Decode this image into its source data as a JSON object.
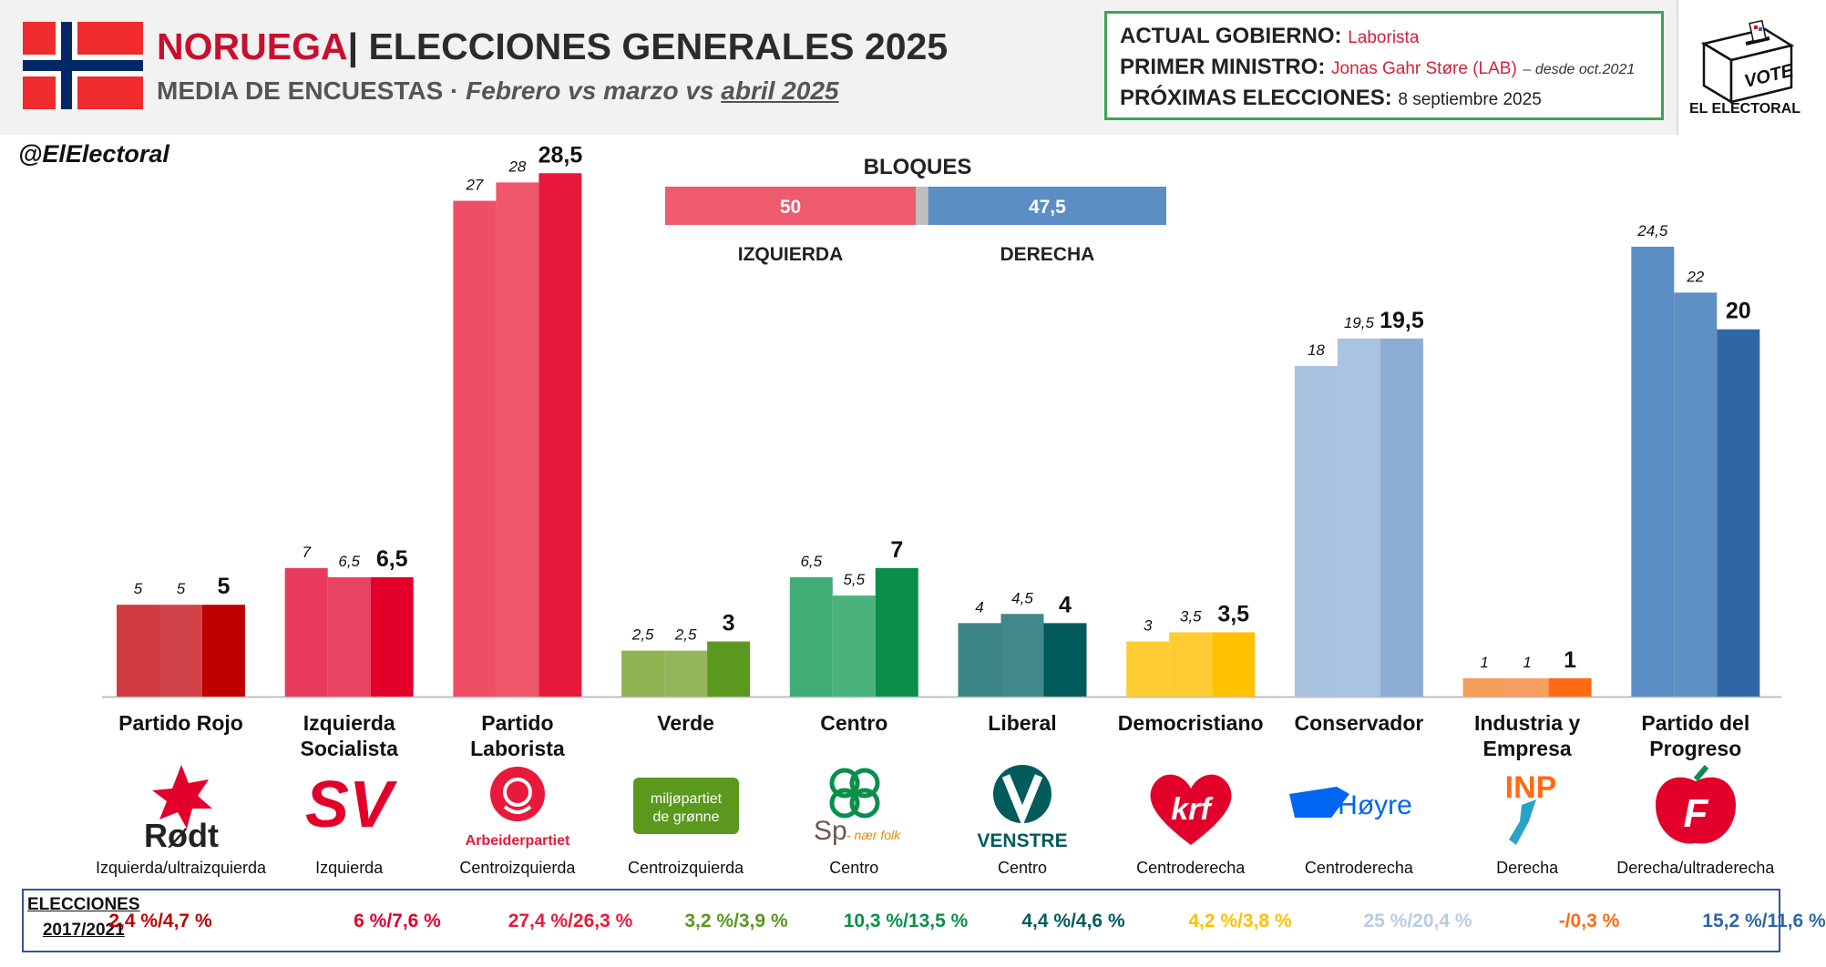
{
  "header": {
    "country": "NORUEGA",
    "title_rest": "| ELECCIONES GENERALES 2025",
    "subtitle_prefix": "MEDIA DE ENCUESTAS",
    "subtitle_sep": " · ",
    "subtitle_periods": "Febrero vs marzo vs ",
    "subtitle_latest": "abril 2025"
  },
  "info": {
    "gov_label": "ACTUAL GOBIERNO:",
    "gov_value": "Laborista",
    "pm_label": "PRIMER MINISTRO:",
    "pm_value": "Jonas Gahr Støre (LAB)",
    "pm_note": "– desde oct.2021",
    "next_label": "PRÓXIMAS ELECCIONES:",
    "next_value": "8 septiembre 2025"
  },
  "logo": {
    "vote_text": "VOTE",
    "brand": "EL ELECTORAL"
  },
  "handle": "@ElElectoral",
  "blocks": {
    "title": "BLOQUES",
    "left": {
      "label": "IZQUIERDA",
      "value": 50,
      "display": "50",
      "color": "#ee5a6e"
    },
    "right": {
      "label": "DERECHA",
      "value": 47.5,
      "display": "47,5",
      "color": "#5b8ec4"
    },
    "total": 100
  },
  "chart_data": {
    "type": "bar",
    "periods": [
      "Febrero",
      "marzo",
      "abril 2025"
    ],
    "ylim": [
      0,
      30
    ],
    "categories": [
      "Partido Rojo",
      "Izquierda Socialista",
      "Partido Laborista",
      "Verde",
      "Centro",
      "Liberal",
      "Democristiano",
      "Conservador",
      "Industria y Empresa",
      "Partido del Progreso"
    ],
    "series": [
      {
        "values": [
          5,
          7,
          27,
          2.5,
          6.5,
          4,
          3,
          18,
          1,
          24.5
        ]
      },
      {
        "values": [
          5,
          6.5,
          28,
          2.5,
          5.5,
          4.5,
          3.5,
          19.5,
          1,
          22
        ]
      },
      {
        "values": [
          5,
          6.5,
          28.5,
          3,
          7,
          4,
          3.5,
          19.5,
          1,
          20
        ]
      }
    ],
    "labels": [
      [
        "5",
        "7",
        "27",
        "2,5",
        "6,5",
        "4",
        "3",
        "18",
        "1",
        "24,5"
      ],
      [
        "5",
        "6,5",
        "28",
        "2,5",
        "5,5",
        "4,5",
        "3,5",
        "19,5",
        "1",
        "22"
      ],
      [
        "5",
        "6,5",
        "28,5",
        "3",
        "7",
        "4",
        "3,5",
        "19,5",
        "1",
        "20"
      ]
    ],
    "colors": [
      [
        "#d13b3f",
        "#d14348",
        "#c00000"
      ],
      [
        "#e83a5a",
        "#e84461",
        "#e2002b"
      ],
      [
        "#ee4f66",
        "#f0566c",
        "#e8193b"
      ],
      [
        "#8fb350",
        "#93b65a",
        "#5b981e"
      ],
      [
        "#3fae76",
        "#4ab27d",
        "#0a8f4a"
      ],
      [
        "#3c8585",
        "#418888",
        "#015b5b"
      ],
      [
        "#ffcc33",
        "#ffcc33",
        "#ffc000"
      ],
      [
        "#a7c1df",
        "#a9c3e0",
        "#8eadd4"
      ],
      [
        "#f59c5a",
        "#f5a060",
        "#ff6a13"
      ],
      [
        "#5b8ec4",
        "#5f90c3",
        "#2f67a6"
      ]
    ]
  },
  "parties": [
    {
      "name": "Partido Rojo",
      "ideology": "Izquierda/ultraizquierda",
      "prev": "2,4 %/4,7 %",
      "prev_color": "#c00000",
      "logo_icon": "rodt-star-logo",
      "logo_text": "Rødt"
    },
    {
      "name": "Izquierda Socialista",
      "ideology": "Izquierda",
      "prev": "6 %/7,6 %",
      "prev_color": "#e2002b",
      "logo_icon": "sv-logo",
      "logo_text": "SV"
    },
    {
      "name": "Partido Laborista",
      "ideology": "Centroizquierda",
      "prev": "27,4 %/26,3 %",
      "prev_color": "#e8193b",
      "logo_icon": "rose-logo",
      "logo_text": "Arbeiderpartiet"
    },
    {
      "name": "Verde",
      "ideology": "Centroizquierda",
      "prev": "3,2 %/3,9 %",
      "prev_color": "#5b981e",
      "logo_icon": "mdg-logo",
      "logo_text": "miljøpartiet de grønne"
    },
    {
      "name": "Centro",
      "ideology": "Centro",
      "prev": "10,3 %/13,5 %",
      "prev_color": "#0a8f4a",
      "logo_icon": "clover-logo",
      "logo_text": "Sp",
      "logo_text2": "- nær folk"
    },
    {
      "name": "Liberal",
      "ideology": "Centro",
      "prev": "4,4 %/4,6 %",
      "prev_color": "#015b5b",
      "logo_icon": "venstre-logo",
      "logo_text": "VENSTRE"
    },
    {
      "name": "Democristiano",
      "ideology": "Centroderecha",
      "prev": "4,2 %/3,8 %",
      "prev_color": "#ffc000",
      "logo_icon": "krf-logo",
      "logo_text": "krf"
    },
    {
      "name": "Conservador",
      "ideology": "Centroderecha",
      "prev": "25 %/20,4 %",
      "prev_color": "#b8cce4",
      "logo_icon": "hoyre-logo",
      "logo_text": "Høyre"
    },
    {
      "name": "Industria y Empresa",
      "ideology": "Derecha",
      "prev": "-/0,3 %",
      "prev_color": "#ff6a13",
      "logo_icon": "inp-logo",
      "logo_text": "INP"
    },
    {
      "name": "Partido del Progreso",
      "ideology": "Derecha/ultraderecha",
      "prev": "15,2 %/11,6 %",
      "prev_color": "#2f67a6",
      "logo_icon": "frp-apple-logo",
      "logo_text": "F"
    }
  ],
  "elections_label": [
    "ELECCIONES",
    "2017/2021"
  ],
  "flag_colors": {
    "red": "#ef2b2d",
    "white": "#ffffff",
    "blue": "#002868"
  }
}
